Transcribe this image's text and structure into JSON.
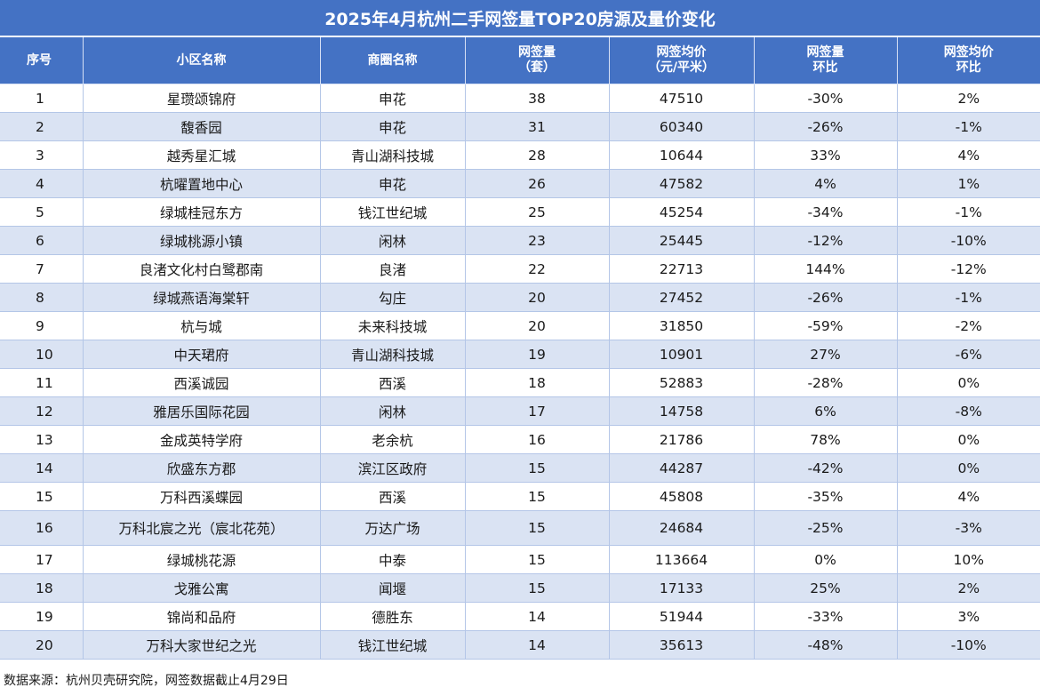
{
  "title": "2025年4月杭州二手网签量TOP20房源及量价变化",
  "headers": {
    "idx": "序号",
    "community": "小区名称",
    "area": "商圈名称",
    "volume_l1": "网签量",
    "volume_l2": "（套）",
    "price_l1": "网签均价",
    "price_l2": "（元/平米）",
    "volume_mom_l1": "网签量",
    "volume_mom_l2": "环比",
    "price_mom_l1": "网签均价",
    "price_mom_l2": "环比"
  },
  "rows": [
    {
      "idx": "1",
      "community": "星瓒颂锦府",
      "area": "申花",
      "volume": "38",
      "price": "47510",
      "volume_mom": "-30%",
      "price_mom": "2%"
    },
    {
      "idx": "2",
      "community": "馥香园",
      "area": "申花",
      "volume": "31",
      "price": "60340",
      "volume_mom": "-26%",
      "price_mom": "-1%"
    },
    {
      "idx": "3",
      "community": "越秀星汇城",
      "area": "青山湖科技城",
      "volume": "28",
      "price": "10644",
      "volume_mom": "33%",
      "price_mom": "4%"
    },
    {
      "idx": "4",
      "community": "杭曜置地中心",
      "area": "申花",
      "volume": "26",
      "price": "47582",
      "volume_mom": "4%",
      "price_mom": "1%"
    },
    {
      "idx": "5",
      "community": "绿城桂冠东方",
      "area": "钱江世纪城",
      "volume": "25",
      "price": "45254",
      "volume_mom": "-34%",
      "price_mom": "-1%"
    },
    {
      "idx": "6",
      "community": "绿城桃源小镇",
      "area": "闲林",
      "volume": "23",
      "price": "25445",
      "volume_mom": "-12%",
      "price_mom": "-10%"
    },
    {
      "idx": "7",
      "community": "良渚文化村白鹭郡南",
      "area": "良渚",
      "volume": "22",
      "price": "22713",
      "volume_mom": "144%",
      "price_mom": "-12%"
    },
    {
      "idx": "8",
      "community": "绿城燕语海棠轩",
      "area": "勾庄",
      "volume": "20",
      "price": "27452",
      "volume_mom": "-26%",
      "price_mom": "-1%"
    },
    {
      "idx": "9",
      "community": "杭与城",
      "area": "未来科技城",
      "volume": "20",
      "price": "31850",
      "volume_mom": "-59%",
      "price_mom": "-2%"
    },
    {
      "idx": "10",
      "community": "中天珺府",
      "area": "青山湖科技城",
      "volume": "19",
      "price": "10901",
      "volume_mom": "27%",
      "price_mom": "-6%"
    },
    {
      "idx": "11",
      "community": "西溪诚园",
      "area": "西溪",
      "volume": "18",
      "price": "52883",
      "volume_mom": "-28%",
      "price_mom": "0%"
    },
    {
      "idx": "12",
      "community": "雅居乐国际花园",
      "area": "闲林",
      "volume": "17",
      "price": "14758",
      "volume_mom": "6%",
      "price_mom": "-8%"
    },
    {
      "idx": "13",
      "community": "金成英特学府",
      "area": "老余杭",
      "volume": "16",
      "price": "21786",
      "volume_mom": "78%",
      "price_mom": "0%"
    },
    {
      "idx": "14",
      "community": "欣盛东方郡",
      "area": "滨江区政府",
      "volume": "15",
      "price": "44287",
      "volume_mom": "-42%",
      "price_mom": "0%"
    },
    {
      "idx": "15",
      "community": "万科西溪蝶园",
      "area": "西溪",
      "volume": "15",
      "price": "45808",
      "volume_mom": "-35%",
      "price_mom": "4%"
    },
    {
      "idx": "16",
      "community": "万科北宸之光（宸北花苑）",
      "area": "万达广场",
      "volume": "15",
      "price": "24684",
      "volume_mom": "-25%",
      "price_mom": "-3%"
    },
    {
      "idx": "17",
      "community": "绿城桃花源",
      "area": "中泰",
      "volume": "15",
      "price": "113664",
      "volume_mom": "0%",
      "price_mom": "10%"
    },
    {
      "idx": "18",
      "community": "戈雅公寓",
      "area": "闻堰",
      "volume": "15",
      "price": "17133",
      "volume_mom": "25%",
      "price_mom": "2%"
    },
    {
      "idx": "19",
      "community": "锦尚和品府",
      "area": "德胜东",
      "volume": "14",
      "price": "51944",
      "volume_mom": "-33%",
      "price_mom": "3%"
    },
    {
      "idx": "20",
      "community": "万科大家世纪之光",
      "area": "钱江世纪城",
      "volume": "14",
      "price": "35613",
      "volume_mom": "-48%",
      "price_mom": "-10%"
    }
  ],
  "source": "数据来源：杭州贝壳研究院，网签数据截止4月29日"
}
